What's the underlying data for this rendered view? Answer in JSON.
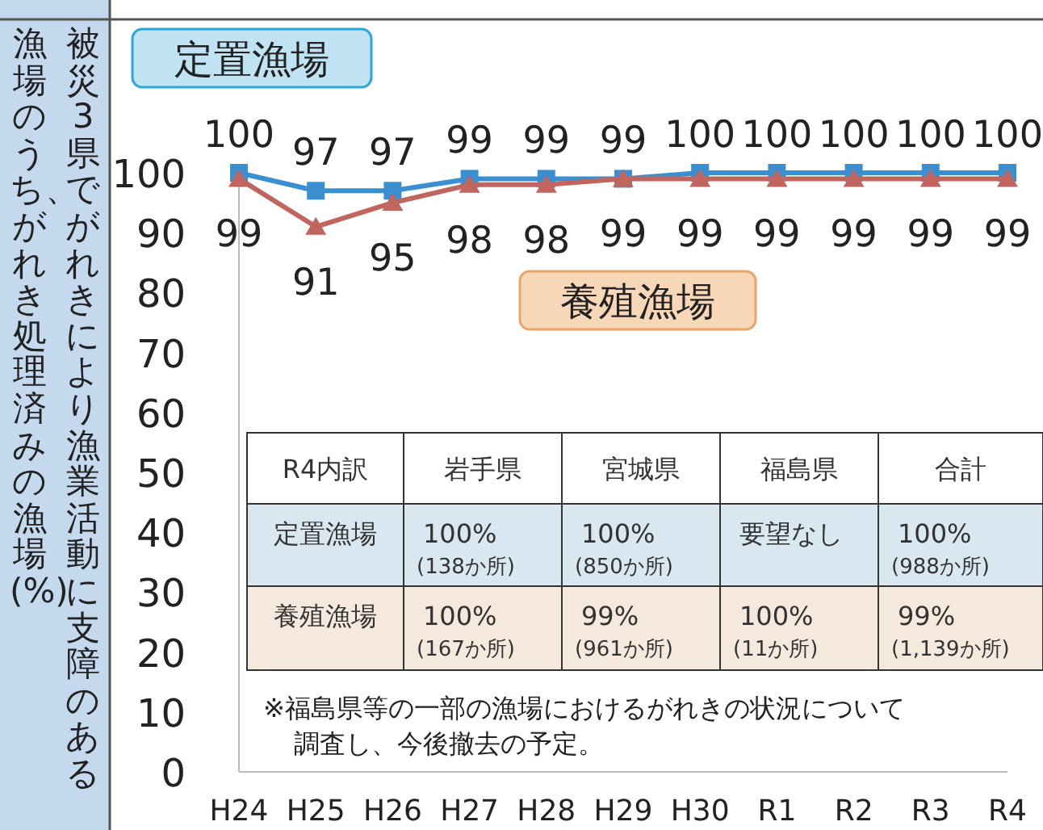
{
  "chart_data": {
    "type": "line",
    "ylabel": "被災3県でがれきにより漁業活動に支障のある漁場のうち、がれき処理済みの漁場(%)",
    "categories": [
      "H24",
      "H25",
      "H26",
      "H27",
      "H28",
      "H29",
      "H30",
      "R1",
      "R2",
      "R3",
      "R4"
    ],
    "ylim": [
      0,
      100
    ],
    "yticks": [
      0,
      10,
      20,
      30,
      40,
      50,
      60,
      70,
      80,
      90,
      100
    ],
    "data_labels": true,
    "series": [
      {
        "name": "定置漁場",
        "color": "#3a8fd0",
        "marker": "square",
        "values": [
          100,
          97,
          97,
          99,
          99,
          99,
          100,
          100,
          100,
          100,
          100
        ]
      },
      {
        "name": "養殖漁場",
        "color": "#c0665e",
        "marker": "triangle",
        "values": [
          99,
          91,
          95,
          98,
          98,
          99,
          99,
          99,
          99,
          99,
          99
        ]
      }
    ],
    "annotations": [
      "R4内訳",
      "岩手県",
      "宮城県",
      "福島県",
      "合計",
      "定置漁場",
      "100%\n(138か所)",
      "100%\n(850か所)",
      "要望なし",
      "100%\n(988か所)",
      "養殖漁場",
      "100%\n(167か所)",
      "99%\n(961か所)",
      "100%\n(11か所)",
      "99%\n(1,139か所)",
      "※福島県等の一部の漁場におけるがれきの状況について",
      "調査し、今後撤去の予定。"
    ]
  }
}
